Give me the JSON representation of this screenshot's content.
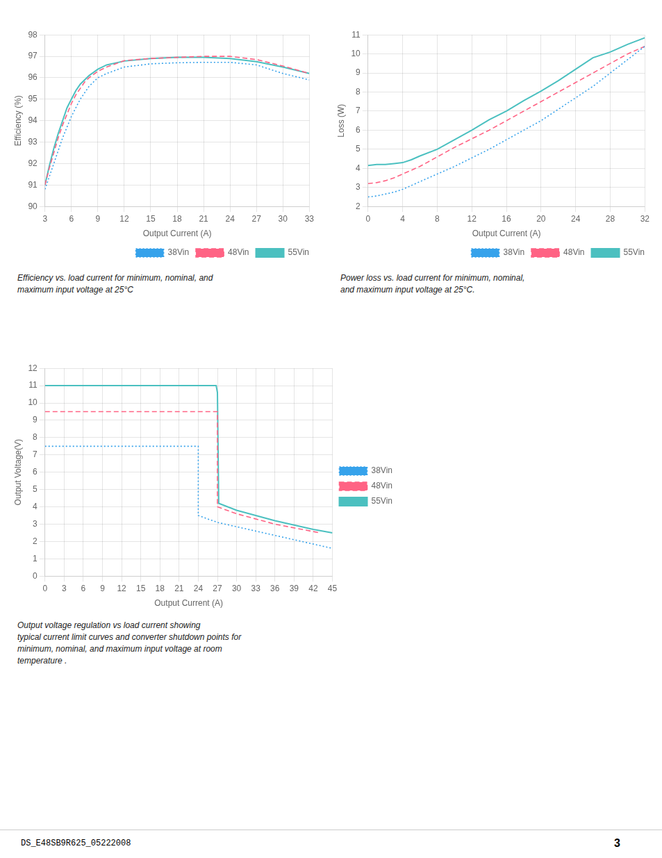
{
  "chart_data": [
    {
      "type": "line",
      "xlabel": "Output Current (A)",
      "ylabel": "Efficiency (%)",
      "xlim": [
        3,
        33
      ],
      "ylim": [
        90,
        98
      ],
      "xticks": [
        3,
        6,
        9,
        12,
        15,
        18,
        21,
        24,
        27,
        30,
        33
      ],
      "yticks": [
        90,
        91,
        92,
        93,
        94,
        95,
        96,
        97,
        98
      ],
      "grid": true,
      "legend": "lower right",
      "series": [
        {
          "name": "38Vin",
          "line_style": "dotted",
          "x": [
            3,
            3.5,
            4,
            4.5,
            5,
            5.5,
            6,
            6.5,
            7,
            7.5,
            8,
            9,
            10,
            12,
            15,
            18,
            21,
            24,
            27,
            30,
            33
          ],
          "values": [
            90.8,
            91.4,
            92.0,
            92.6,
            93.2,
            93.7,
            94.2,
            94.6,
            95.0,
            95.3,
            95.6,
            96.0,
            96.2,
            96.5,
            96.65,
            96.7,
            96.72,
            96.72,
            96.6,
            96.2,
            95.9
          ]
        },
        {
          "name": "48Vin",
          "line_style": "dashed",
          "x": [
            3,
            3.5,
            4,
            4.5,
            5,
            5.5,
            6,
            6.5,
            7,
            7.5,
            8,
            9,
            10,
            12,
            15,
            18,
            21,
            24,
            27,
            30,
            33
          ],
          "values": [
            91.0,
            91.8,
            92.5,
            93.2,
            93.8,
            94.3,
            94.8,
            95.2,
            95.5,
            95.8,
            96.0,
            96.3,
            96.5,
            96.8,
            96.9,
            96.95,
            97.0,
            97.0,
            96.85,
            96.55,
            96.2
          ]
        },
        {
          "name": "55Vin",
          "line_style": "solid",
          "x": [
            3,
            3.5,
            4,
            4.5,
            5,
            5.5,
            6,
            6.5,
            7,
            7.5,
            8,
            9,
            10,
            12,
            15,
            18,
            21,
            24,
            27,
            30,
            33
          ],
          "values": [
            91.0,
            91.9,
            92.7,
            93.4,
            94.0,
            94.6,
            95.0,
            95.4,
            95.7,
            95.9,
            96.1,
            96.4,
            96.6,
            96.78,
            96.9,
            96.95,
            96.95,
            96.9,
            96.75,
            96.5,
            96.2
          ]
        }
      ],
      "annotations": [
        "Efficiency vs. load current for minimum, nominal, and",
        "maximum input voltage at 25°C"
      ]
    },
    {
      "type": "line",
      "xlabel": "Output Current (A)",
      "ylabel": "Loss (W)",
      "xlim": [
        0,
        32
      ],
      "ylim": [
        2,
        11
      ],
      "xticks": [
        0,
        4,
        8,
        12,
        16,
        20,
        24,
        28,
        32
      ],
      "yticks": [
        2,
        3,
        4,
        5,
        6,
        7,
        8,
        9,
        10,
        11
      ],
      "grid": true,
      "legend": "lower right",
      "series": [
        {
          "name": "38Vin",
          "line_style": "dotted",
          "x": [
            0,
            1,
            2,
            3,
            4,
            5,
            6,
            8,
            10,
            12,
            14,
            16,
            18,
            20,
            22,
            24,
            26,
            28,
            30,
            32
          ],
          "values": [
            2.5,
            2.55,
            2.65,
            2.75,
            2.9,
            3.1,
            3.3,
            3.7,
            4.1,
            4.55,
            5.0,
            5.5,
            6.0,
            6.5,
            7.1,
            7.7,
            8.3,
            9.0,
            9.7,
            10.4
          ]
        },
        {
          "name": "48Vin",
          "line_style": "dashed",
          "x": [
            0,
            1,
            2,
            3,
            4,
            5,
            6,
            8,
            10,
            12,
            14,
            16,
            18,
            20,
            22,
            24,
            26,
            28,
            30,
            32
          ],
          "values": [
            3.2,
            3.25,
            3.35,
            3.5,
            3.7,
            3.9,
            4.1,
            4.6,
            5.1,
            5.55,
            6.0,
            6.5,
            7.0,
            7.5,
            8.0,
            8.5,
            9.0,
            9.5,
            10.0,
            10.4
          ]
        },
        {
          "name": "55Vin",
          "line_style": "solid",
          "x": [
            0,
            1,
            2,
            3,
            4,
            5,
            6,
            8,
            10,
            12,
            14,
            16,
            18,
            20,
            22,
            24,
            26,
            28,
            30,
            32
          ],
          "values": [
            4.15,
            4.2,
            4.2,
            4.25,
            4.3,
            4.45,
            4.65,
            5.0,
            5.5,
            6.0,
            6.55,
            7.0,
            7.55,
            8.05,
            8.6,
            9.2,
            9.8,
            10.1,
            10.5,
            10.85
          ]
        }
      ],
      "annotations": [
        "Power loss vs. load current for minimum, nominal,",
        "and maximum input voltage at 25°C."
      ]
    },
    {
      "type": "line",
      "xlabel": "Output Current (A)",
      "ylabel": "Output Voltage(V)",
      "xlim": [
        0,
        45
      ],
      "ylim": [
        0,
        12
      ],
      "xticks": [
        0,
        3,
        6,
        9,
        12,
        15,
        18,
        21,
        24,
        27,
        30,
        33,
        36,
        39,
        42,
        45
      ],
      "yticks": [
        0,
        1,
        2,
        3,
        4,
        5,
        6,
        7,
        8,
        9,
        10,
        11,
        12
      ],
      "grid": true,
      "legend": "center right",
      "series": [
        {
          "name": "38Vin",
          "line_style": "dotted",
          "x": [
            0,
            23.5,
            24.0,
            24.0,
            27,
            33,
            39,
            45
          ],
          "values": [
            7.5,
            7.5,
            7.5,
            3.5,
            3.1,
            2.6,
            2.1,
            1.6
          ]
        },
        {
          "name": "48Vin",
          "line_style": "dashed",
          "x": [
            0,
            26.5,
            27.0,
            27.0,
            30,
            36,
            43
          ],
          "values": [
            9.5,
            9.5,
            9.5,
            4.0,
            3.6,
            3.0,
            2.5
          ]
        },
        {
          "name": "55Vin",
          "line_style": "solid",
          "x": [
            0,
            26.8,
            27.0,
            27.2,
            30,
            36,
            42,
            45
          ],
          "values": [
            11.0,
            11.0,
            10.6,
            4.2,
            3.8,
            3.2,
            2.7,
            2.5
          ]
        }
      ],
      "annotations": [
        "Output voltage regulation vs load current showing",
        "typical current limit curves and converter shutdown points for",
        "minimum, nominal, and maximum input voltage at room",
        "temperature ."
      ]
    }
  ],
  "annotations": [
    "DS_E48SB9R625_05222008",
    "3"
  ]
}
